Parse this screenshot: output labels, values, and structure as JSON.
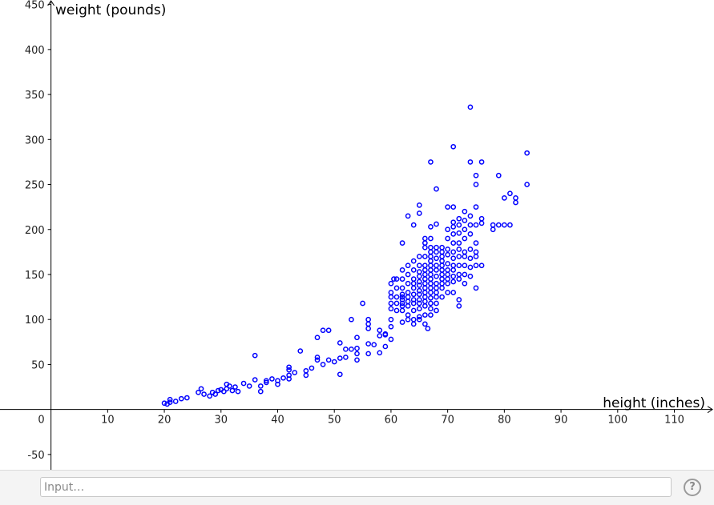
{
  "chart_data": {
    "type": "scatter",
    "xlabel": "height (inches)",
    "ylabel": "weight (pounds)",
    "xlim": [
      -9,
      117
    ],
    "ylim": [
      -67,
      455
    ],
    "x_ticks": [
      0,
      10,
      20,
      30,
      40,
      50,
      60,
      70,
      80,
      90,
      100,
      110
    ],
    "y_ticks": [
      -50,
      50,
      100,
      150,
      200,
      250,
      300,
      350,
      400,
      450
    ],
    "origin_label": "0",
    "grid": false,
    "legend": "none",
    "marker_color": "#0000ff",
    "series": [
      {
        "points": [
          [
            20,
            7
          ],
          [
            20.5,
            6
          ],
          [
            21,
            8
          ],
          [
            21,
            11
          ],
          [
            22,
            9
          ],
          [
            23,
            12
          ],
          [
            24,
            13
          ],
          [
            26,
            19
          ],
          [
            26.5,
            23
          ],
          [
            27,
            17
          ],
          [
            28,
            15
          ],
          [
            28.5,
            19
          ],
          [
            29,
            17
          ],
          [
            29.5,
            21
          ],
          [
            30,
            22
          ],
          [
            30.5,
            20
          ],
          [
            31,
            23
          ],
          [
            31,
            28
          ],
          [
            31.5,
            26
          ],
          [
            32,
            21
          ],
          [
            32.5,
            25
          ],
          [
            33,
            20
          ],
          [
            34,
            29
          ],
          [
            35,
            26
          ],
          [
            36,
            33
          ],
          [
            36,
            60
          ],
          [
            37,
            26
          ],
          [
            37,
            20
          ],
          [
            38,
            32
          ],
          [
            38,
            30
          ],
          [
            39,
            34
          ],
          [
            40,
            32
          ],
          [
            40,
            28
          ],
          [
            41,
            35
          ],
          [
            42,
            34
          ],
          [
            42,
            38
          ],
          [
            42,
            44
          ],
          [
            42,
            47
          ],
          [
            43,
            41
          ],
          [
            44,
            65
          ],
          [
            45,
            38
          ],
          [
            45,
            43
          ],
          [
            46,
            46
          ],
          [
            47,
            55
          ],
          [
            47,
            58
          ],
          [
            47,
            80
          ],
          [
            48,
            50
          ],
          [
            48,
            88
          ],
          [
            49,
            88
          ],
          [
            49,
            55
          ],
          [
            50,
            53
          ],
          [
            51,
            57
          ],
          [
            51,
            74
          ],
          [
            51,
            39
          ],
          [
            52,
            58
          ],
          [
            52,
            67
          ],
          [
            53,
            67
          ],
          [
            53,
            100
          ],
          [
            54,
            68
          ],
          [
            54,
            62
          ],
          [
            54,
            55
          ],
          [
            54,
            80
          ],
          [
            55,
            118
          ],
          [
            56,
            62
          ],
          [
            56,
            73
          ],
          [
            56,
            90
          ],
          [
            56,
            95
          ],
          [
            56,
            100
          ],
          [
            57,
            72
          ],
          [
            58,
            63
          ],
          [
            58,
            82
          ],
          [
            58,
            88
          ],
          [
            59,
            70
          ],
          [
            59,
            84
          ],
          [
            59,
            83
          ],
          [
            60,
            78
          ],
          [
            60,
            92
          ],
          [
            60,
            100
          ],
          [
            60,
            112
          ],
          [
            60,
            125
          ],
          [
            60,
            130
          ],
          [
            60,
            140
          ],
          [
            60.5,
            145
          ],
          [
            60,
            118
          ],
          [
            61,
            110
          ],
          [
            61,
            118
          ],
          [
            61,
            125
          ],
          [
            61,
            135
          ],
          [
            61,
            145
          ],
          [
            62,
            97
          ],
          [
            62,
            110
          ],
          [
            62,
            115
          ],
          [
            62,
            118
          ],
          [
            62,
            122
          ],
          [
            62,
            125
          ],
          [
            62,
            128
          ],
          [
            62,
            135
          ],
          [
            62,
            145
          ],
          [
            62,
            155
          ],
          [
            62,
            185
          ],
          [
            63,
            100
          ],
          [
            63,
            105
          ],
          [
            63,
            115
          ],
          [
            63,
            120
          ],
          [
            63,
            125
          ],
          [
            63,
            130
          ],
          [
            63,
            140
          ],
          [
            63,
            150
          ],
          [
            63,
            160
          ],
          [
            63,
            215
          ],
          [
            64,
            95
          ],
          [
            64,
            100
          ],
          [
            64,
            110
          ],
          [
            64,
            118
          ],
          [
            64,
            122
          ],
          [
            64,
            128
          ],
          [
            64,
            135
          ],
          [
            64,
            140
          ],
          [
            64,
            145
          ],
          [
            64,
            155
          ],
          [
            64,
            165
          ],
          [
            64,
            205
          ],
          [
            65,
            100
          ],
          [
            65,
            103
          ],
          [
            65,
            112
          ],
          [
            65,
            118
          ],
          [
            65,
            122
          ],
          [
            65,
            128
          ],
          [
            65,
            132
          ],
          [
            65,
            138
          ],
          [
            65,
            142
          ],
          [
            65,
            148
          ],
          [
            65,
            153
          ],
          [
            65,
            160
          ],
          [
            65,
            170
          ],
          [
            65,
            218
          ],
          [
            65,
            227
          ],
          [
            66,
            95
          ],
          [
            66,
            105
          ],
          [
            66,
            115
          ],
          [
            66,
            120
          ],
          [
            66,
            125
          ],
          [
            66,
            130
          ],
          [
            66,
            135
          ],
          [
            66,
            140
          ],
          [
            66,
            145
          ],
          [
            66,
            150
          ],
          [
            66,
            155
          ],
          [
            66,
            160
          ],
          [
            66,
            170
          ],
          [
            66,
            180
          ],
          [
            66,
            185
          ],
          [
            66,
            190
          ],
          [
            66.5,
            90
          ],
          [
            67,
            105
          ],
          [
            67,
            112
          ],
          [
            67,
            118
          ],
          [
            67,
            124
          ],
          [
            67,
            130
          ],
          [
            67,
            135
          ],
          [
            67,
            140
          ],
          [
            67,
            145
          ],
          [
            67,
            150
          ],
          [
            67,
            155
          ],
          [
            67,
            160
          ],
          [
            67,
            165
          ],
          [
            67,
            170
          ],
          [
            67,
            175
          ],
          [
            67,
            180
          ],
          [
            67,
            190
          ],
          [
            67,
            203
          ],
          [
            67,
            275
          ],
          [
            68,
            110
          ],
          [
            68,
            118
          ],
          [
            68,
            125
          ],
          [
            68,
            130
          ],
          [
            68,
            135
          ],
          [
            68,
            140
          ],
          [
            68,
            148
          ],
          [
            68,
            155
          ],
          [
            68,
            160
          ],
          [
            68,
            168
          ],
          [
            68,
            175
          ],
          [
            68,
            180
          ],
          [
            68,
            206
          ],
          [
            68,
            245
          ],
          [
            69,
            125
          ],
          [
            69,
            135
          ],
          [
            69,
            140
          ],
          [
            69,
            145
          ],
          [
            69,
            150
          ],
          [
            69,
            155
          ],
          [
            69,
            160
          ],
          [
            69,
            165
          ],
          [
            69,
            170
          ],
          [
            69,
            175
          ],
          [
            69,
            180
          ],
          [
            70,
            130
          ],
          [
            70,
            140
          ],
          [
            70,
            145
          ],
          [
            70,
            150
          ],
          [
            70,
            155
          ],
          [
            70,
            162
          ],
          [
            70,
            172
          ],
          [
            70,
            178
          ],
          [
            70,
            190
          ],
          [
            70,
            200
          ],
          [
            70,
            225
          ],
          [
            71,
            130
          ],
          [
            71,
            142
          ],
          [
            71,
            148
          ],
          [
            71,
            155
          ],
          [
            71,
            160
          ],
          [
            71,
            168
          ],
          [
            71,
            175
          ],
          [
            71,
            185
          ],
          [
            71,
            195
          ],
          [
            71,
            203
          ],
          [
            71,
            208
          ],
          [
            71,
            225
          ],
          [
            71,
            292
          ],
          [
            72,
            115
          ],
          [
            72,
            122
          ],
          [
            72,
            145
          ],
          [
            72,
            150
          ],
          [
            72,
            160
          ],
          [
            72,
            170
          ],
          [
            72,
            178
          ],
          [
            72,
            185
          ],
          [
            72,
            196
          ],
          [
            72,
            205
          ],
          [
            72,
            212
          ],
          [
            73,
            140
          ],
          [
            73,
            150
          ],
          [
            73,
            160
          ],
          [
            73,
            170
          ],
          [
            73,
            175
          ],
          [
            73,
            190
          ],
          [
            73,
            200
          ],
          [
            73,
            210
          ],
          [
            73,
            220
          ],
          [
            74,
            148
          ],
          [
            74,
            158
          ],
          [
            74,
            168
          ],
          [
            74,
            178
          ],
          [
            74,
            195
          ],
          [
            74,
            205
          ],
          [
            74,
            215
          ],
          [
            74,
            275
          ],
          [
            74,
            336
          ],
          [
            75,
            135
          ],
          [
            75,
            160
          ],
          [
            75,
            170
          ],
          [
            75,
            175
          ],
          [
            75,
            185
          ],
          [
            75,
            205
          ],
          [
            75,
            225
          ],
          [
            75,
            250
          ],
          [
            75,
            260
          ],
          [
            76,
            160
          ],
          [
            76,
            207
          ],
          [
            76,
            212
          ],
          [
            76,
            275
          ],
          [
            78,
            200
          ],
          [
            78,
            205
          ],
          [
            79,
            205
          ],
          [
            79,
            260
          ],
          [
            80,
            205
          ],
          [
            80,
            235
          ],
          [
            81,
            205
          ],
          [
            81,
            240
          ],
          [
            82,
            230
          ],
          [
            82,
            235
          ],
          [
            84,
            250
          ],
          [
            84,
            285
          ]
        ]
      }
    ]
  },
  "input_bar": {
    "placeholder": "Input…",
    "help_symbol": "?"
  }
}
